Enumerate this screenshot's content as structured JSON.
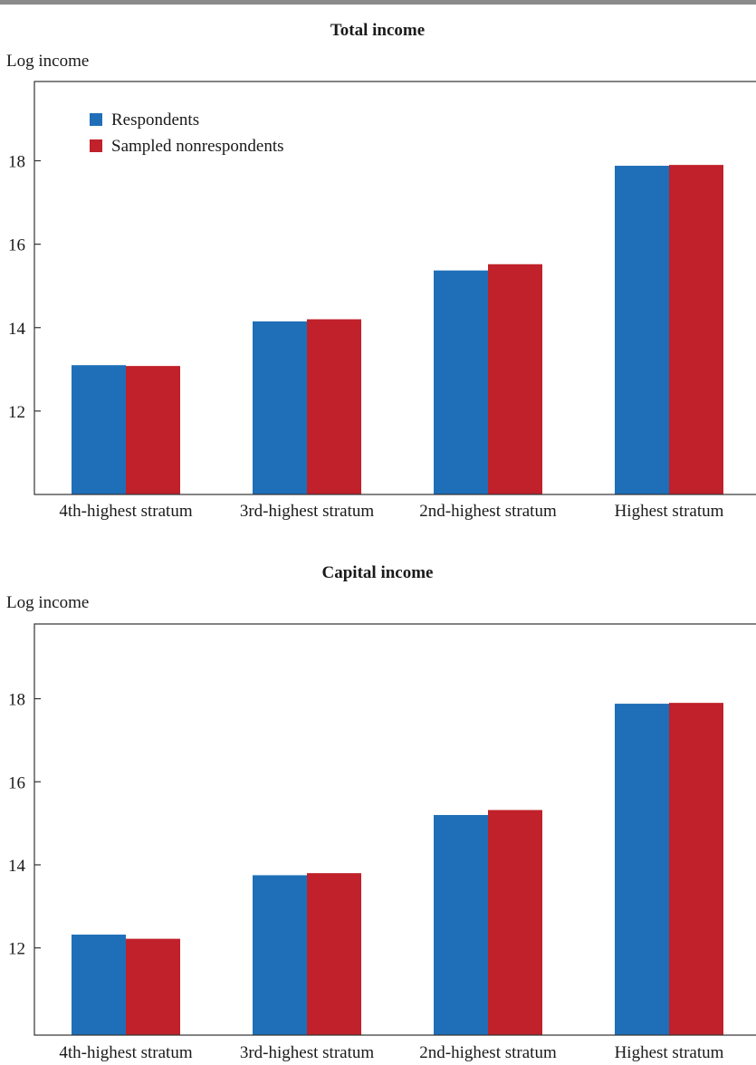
{
  "colors": {
    "respondents": "#1f6fb8",
    "nonrespondents": "#c0212a",
    "axis": "#333333",
    "top_rule": "#8a8a8a"
  },
  "chart_data": [
    {
      "type": "bar",
      "title": "Total income",
      "ylabel": "Log income",
      "xlabel": "",
      "categories": [
        "4th-highest stratum",
        "3rd-highest stratum",
        "2nd-highest stratum",
        "Highest stratum"
      ],
      "series": [
        {
          "name": "Respondents",
          "values": [
            13.1,
            14.15,
            15.37,
            17.88
          ]
        },
        {
          "name": "Sampled nonrespondents",
          "values": [
            13.08,
            14.2,
            15.52,
            17.9
          ]
        }
      ],
      "ylim": [
        10.0,
        19.9
      ],
      "yticks": [
        "12",
        "14",
        "16",
        "18"
      ],
      "legend": "top-left",
      "grid": false
    },
    {
      "type": "bar",
      "title": "Capital income",
      "ylabel": "Log income",
      "xlabel": "",
      "categories": [
        "4th-highest stratum",
        "3rd-highest stratum",
        "2nd-highest stratum",
        "Highest stratum"
      ],
      "series": [
        {
          "name": "Respondents",
          "values": [
            12.32,
            13.75,
            15.2,
            17.88
          ]
        },
        {
          "name": "Sampled nonrespondents",
          "values": [
            12.22,
            13.8,
            15.32,
            17.9
          ]
        }
      ],
      "ylim": [
        9.9,
        19.8
      ],
      "yticks": [
        "12",
        "14",
        "16",
        "18"
      ],
      "legend": "none",
      "grid": false
    }
  ]
}
